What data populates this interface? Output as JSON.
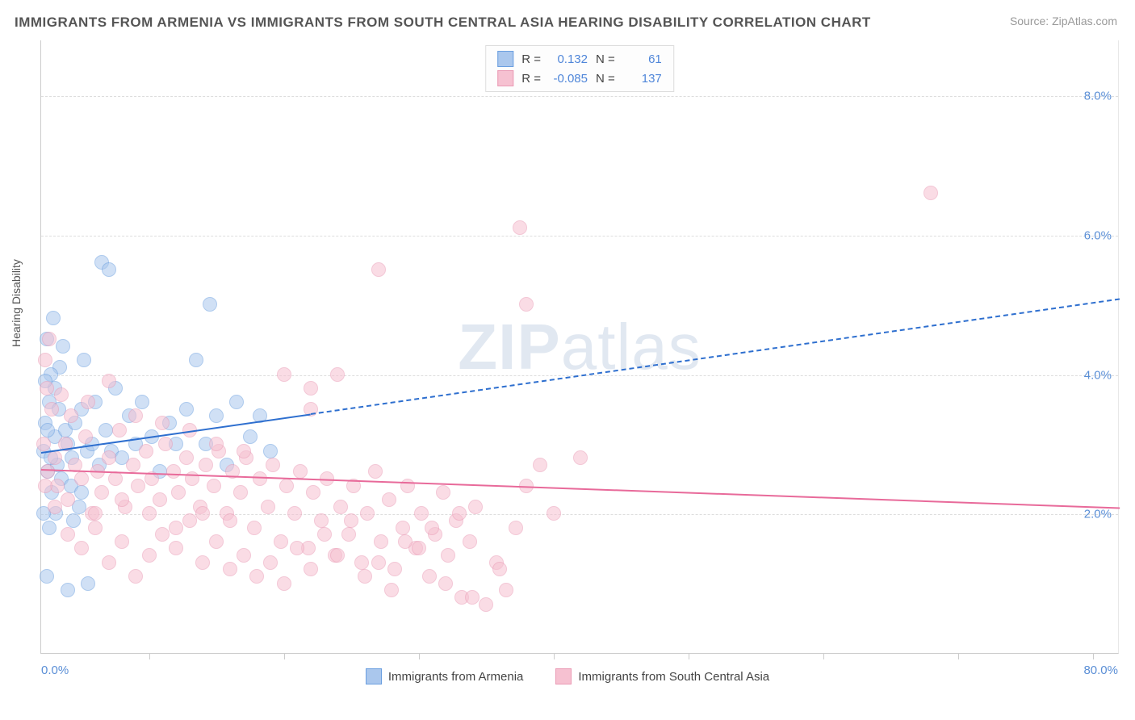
{
  "title": "IMMIGRANTS FROM ARMENIA VS IMMIGRANTS FROM SOUTH CENTRAL ASIA HEARING DISABILITY CORRELATION CHART",
  "source": "Source: ZipAtlas.com",
  "y_axis_label": "Hearing Disability",
  "watermark_bold": "ZIP",
  "watermark_rest": "atlas",
  "chart": {
    "type": "scatter",
    "background_color": "#ffffff",
    "grid_color": "#dddddd",
    "axis_color": "#cccccc",
    "tick_label_color": "#5b8fd6",
    "tick_fontsize": 15,
    "title_fontsize": 17,
    "title_color": "#555555",
    "xlim": [
      0,
      80
    ],
    "ylim": [
      0,
      8.8
    ],
    "x_axis_min_label": "0.0%",
    "x_axis_max_label": "80.0%",
    "x_tick_positions": [
      8,
      18,
      28,
      38,
      48,
      58,
      68,
      78
    ],
    "y_ticks": [
      {
        "v": 2.0,
        "label": "2.0%"
      },
      {
        "v": 4.0,
        "label": "4.0%"
      },
      {
        "v": 6.0,
        "label": "6.0%"
      },
      {
        "v": 8.0,
        "label": "8.0%"
      }
    ],
    "point_radius": 9,
    "point_opacity": 0.55,
    "series": [
      {
        "name": "Immigrants from Armenia",
        "color_fill": "#aac7ed",
        "color_stroke": "#6b9fe0",
        "line_color": "#2e6fcf",
        "r_label": "R =",
        "r_value": "0.132",
        "n_label": "N =",
        "n_value": "61",
        "regression": {
          "x1": 0,
          "y1": 2.9,
          "x2_solid": 20,
          "y2_solid": 3.45,
          "x2_dash": 80,
          "y2_dash": 5.1
        },
        "points": [
          [
            0.2,
            2.9
          ],
          [
            0.3,
            3.3
          ],
          [
            0.5,
            2.6
          ],
          [
            0.6,
            3.6
          ],
          [
            0.4,
            4.5
          ],
          [
            0.8,
            2.3
          ],
          [
            0.6,
            1.8
          ],
          [
            1.0,
            3.1
          ],
          [
            1.2,
            2.7
          ],
          [
            1.0,
            3.8
          ],
          [
            1.5,
            2.5
          ],
          [
            1.8,
            3.2
          ],
          [
            1.4,
            4.1
          ],
          [
            2.0,
            3.0
          ],
          [
            2.2,
            2.4
          ],
          [
            2.5,
            3.3
          ],
          [
            2.3,
            2.8
          ],
          [
            2.8,
            2.1
          ],
          [
            3.0,
            3.5
          ],
          [
            3.4,
            2.9
          ],
          [
            3.2,
            4.2
          ],
          [
            3.8,
            3.0
          ],
          [
            4.0,
            3.6
          ],
          [
            4.3,
            2.7
          ],
          [
            4.8,
            3.2
          ],
          [
            5.2,
            2.9
          ],
          [
            5.5,
            3.8
          ],
          [
            6.0,
            2.8
          ],
          [
            6.5,
            3.4
          ],
          [
            7.0,
            3.0
          ],
          [
            7.5,
            3.6
          ],
          [
            8.2,
            3.1
          ],
          [
            8.8,
            2.6
          ],
          [
            9.5,
            3.3
          ],
          [
            10.0,
            3.0
          ],
          [
            10.8,
            3.5
          ],
          [
            11.5,
            4.2
          ],
          [
            12.2,
            3.0
          ],
          [
            13.0,
            3.4
          ],
          [
            13.8,
            2.7
          ],
          [
            14.5,
            3.6
          ],
          [
            15.5,
            3.1
          ],
          [
            16.2,
            3.4
          ],
          [
            17.0,
            2.9
          ],
          [
            12.5,
            5.0
          ],
          [
            4.5,
            5.6
          ],
          [
            5.0,
            5.5
          ],
          [
            0.7,
            4.0
          ],
          [
            0.9,
            4.8
          ],
          [
            1.6,
            4.4
          ],
          [
            2.4,
            1.9
          ],
          [
            3.0,
            2.3
          ],
          [
            1.1,
            2.0
          ],
          [
            0.2,
            2.0
          ],
          [
            0.3,
            3.9
          ],
          [
            0.5,
            3.2
          ],
          [
            1.3,
            3.5
          ],
          [
            0.7,
            2.8
          ],
          [
            2.0,
            0.9
          ],
          [
            3.5,
            1.0
          ],
          [
            0.4,
            1.1
          ]
        ]
      },
      {
        "name": "Immigrants from South Central Asia",
        "color_fill": "#f6c1d1",
        "color_stroke": "#ea9bb5",
        "line_color": "#e86a9a",
        "r_label": "R =",
        "r_value": "-0.085",
        "n_label": "N =",
        "n_value": "137",
        "regression": {
          "x1": 0,
          "y1": 2.65,
          "x2_solid": 80,
          "y2_solid": 2.1,
          "x2_dash": 80,
          "y2_dash": 2.1
        },
        "points": [
          [
            0.5,
            2.6
          ],
          [
            1.0,
            2.8
          ],
          [
            1.2,
            2.4
          ],
          [
            1.8,
            3.0
          ],
          [
            2.0,
            2.2
          ],
          [
            2.5,
            2.7
          ],
          [
            3.0,
            2.5
          ],
          [
            3.3,
            3.1
          ],
          [
            3.8,
            2.0
          ],
          [
            4.2,
            2.6
          ],
          [
            4.5,
            2.3
          ],
          [
            5.0,
            2.8
          ],
          [
            5.5,
            2.5
          ],
          [
            5.8,
            3.2
          ],
          [
            6.2,
            2.1
          ],
          [
            6.8,
            2.7
          ],
          [
            7.2,
            2.4
          ],
          [
            7.8,
            2.9
          ],
          [
            8.2,
            2.5
          ],
          [
            8.8,
            2.2
          ],
          [
            9.2,
            3.0
          ],
          [
            9.8,
            2.6
          ],
          [
            10.2,
            2.3
          ],
          [
            10.8,
            2.8
          ],
          [
            11.2,
            2.5
          ],
          [
            11.8,
            2.1
          ],
          [
            12.2,
            2.7
          ],
          [
            12.8,
            2.4
          ],
          [
            13.2,
            2.9
          ],
          [
            13.8,
            2.0
          ],
          [
            14.2,
            2.6
          ],
          [
            14.8,
            2.3
          ],
          [
            15.2,
            2.8
          ],
          [
            15.8,
            1.8
          ],
          [
            16.2,
            2.5
          ],
          [
            16.8,
            2.1
          ],
          [
            17.2,
            2.7
          ],
          [
            17.8,
            1.6
          ],
          [
            18.2,
            2.4
          ],
          [
            18.8,
            2.0
          ],
          [
            19.2,
            2.6
          ],
          [
            19.8,
            1.5
          ],
          [
            20.2,
            2.3
          ],
          [
            20.8,
            1.9
          ],
          [
            21.2,
            2.5
          ],
          [
            21.8,
            1.4
          ],
          [
            22.2,
            2.1
          ],
          [
            22.8,
            1.7
          ],
          [
            23.2,
            2.4
          ],
          [
            23.8,
            1.3
          ],
          [
            24.2,
            2.0
          ],
          [
            24.8,
            2.6
          ],
          [
            25.2,
            1.6
          ],
          [
            25.8,
            2.2
          ],
          [
            26.2,
            1.2
          ],
          [
            26.8,
            1.8
          ],
          [
            27.2,
            2.4
          ],
          [
            27.8,
            1.5
          ],
          [
            28.2,
            2.0
          ],
          [
            28.8,
            1.1
          ],
          [
            29.2,
            1.7
          ],
          [
            29.8,
            2.3
          ],
          [
            30.2,
            1.4
          ],
          [
            30.8,
            1.9
          ],
          [
            31.2,
            0.8
          ],
          [
            31.8,
            1.6
          ],
          [
            32.2,
            2.1
          ],
          [
            33.0,
            0.7
          ],
          [
            33.8,
            1.3
          ],
          [
            34.5,
            0.9
          ],
          [
            35.2,
            1.8
          ],
          [
            36.0,
            2.4
          ],
          [
            37.0,
            2.7
          ],
          [
            38.0,
            2.0
          ],
          [
            40.0,
            2.8
          ],
          [
            20.0,
            3.5
          ],
          [
            22.0,
            4.0
          ],
          [
            25.0,
            5.5
          ],
          [
            18.0,
            4.0
          ],
          [
            20.0,
            3.8
          ],
          [
            0.3,
            4.2
          ],
          [
            0.4,
            3.8
          ],
          [
            0.6,
            4.5
          ],
          [
            0.8,
            3.5
          ],
          [
            1.5,
            3.7
          ],
          [
            2.2,
            3.4
          ],
          [
            3.5,
            3.6
          ],
          [
            5.0,
            3.9
          ],
          [
            7.0,
            3.4
          ],
          [
            9.0,
            3.3
          ],
          [
            11.0,
            3.2
          ],
          [
            13.0,
            3.0
          ],
          [
            15.0,
            2.9
          ],
          [
            4.0,
            1.8
          ],
          [
            6.0,
            1.6
          ],
          [
            8.0,
            1.4
          ],
          [
            10.0,
            1.5
          ],
          [
            12.0,
            1.3
          ],
          [
            14.0,
            1.2
          ],
          [
            16.0,
            1.1
          ],
          [
            18.0,
            1.0
          ],
          [
            20.0,
            1.2
          ],
          [
            22.0,
            1.4
          ],
          [
            24.0,
            1.1
          ],
          [
            26.0,
            0.9
          ],
          [
            28.0,
            1.5
          ],
          [
            30.0,
            1.0
          ],
          [
            32.0,
            0.8
          ],
          [
            34.0,
            1.2
          ],
          [
            36.0,
            5.0
          ],
          [
            35.5,
            6.1
          ],
          [
            66.0,
            6.6
          ],
          [
            3.0,
            1.5
          ],
          [
            5.0,
            1.3
          ],
          [
            7.0,
            1.1
          ],
          [
            9.0,
            1.7
          ],
          [
            11.0,
            1.9
          ],
          [
            13.0,
            1.6
          ],
          [
            15.0,
            1.4
          ],
          [
            17.0,
            1.3
          ],
          [
            19.0,
            1.5
          ],
          [
            21.0,
            1.7
          ],
          [
            23.0,
            1.9
          ],
          [
            25.0,
            1.3
          ],
          [
            27.0,
            1.6
          ],
          [
            29.0,
            1.8
          ],
          [
            31.0,
            2.0
          ],
          [
            0.2,
            3.0
          ],
          [
            0.3,
            2.4
          ],
          [
            1.0,
            2.1
          ],
          [
            2.0,
            1.7
          ],
          [
            4.0,
            2.0
          ],
          [
            6.0,
            2.2
          ],
          [
            8.0,
            2.0
          ],
          [
            10.0,
            1.8
          ],
          [
            12.0,
            2.0
          ],
          [
            14.0,
            1.9
          ]
        ]
      }
    ]
  }
}
